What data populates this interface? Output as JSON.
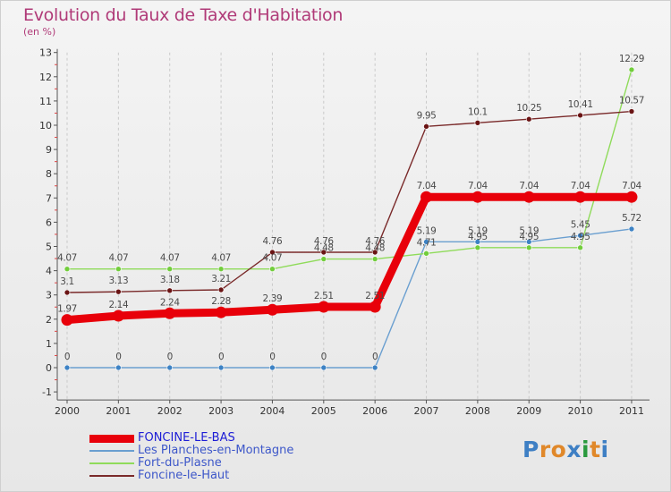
{
  "title": "Evolution du Taux de Taxe d'Habitation",
  "subtitle": "(en %)",
  "logo": {
    "text": "Proxiti",
    "letters": [
      {
        "ch": "P",
        "color": "#3e7fc4"
      },
      {
        "ch": "r",
        "color": "#e0882a"
      },
      {
        "ch": "o",
        "color": "#e0882a"
      },
      {
        "ch": "x",
        "color": "#3e7fc4"
      },
      {
        "ch": "i",
        "color": "#2a9a3e"
      },
      {
        "ch": "t",
        "color": "#e0882a"
      },
      {
        "ch": "i",
        "color": "#3e7fc4"
      }
    ]
  },
  "chart_data": {
    "type": "line",
    "title": "Evolution du Taux de Taxe d'Habitation",
    "subtitle": "(en %)",
    "x": [
      "2000",
      "2001",
      "2002",
      "2003",
      "2004",
      "2005",
      "2006",
      "2007",
      "2008",
      "2009",
      "2010",
      "2011"
    ],
    "ylim": [
      -1,
      13
    ],
    "yticks": [
      -1,
      0,
      1,
      2,
      3,
      4,
      5,
      6,
      7,
      8,
      9,
      10,
      11,
      12,
      13
    ],
    "grid": "vertical dashed",
    "legend_position": "bottom-left",
    "series": [
      {
        "name": "FONCINE-LE-BAS",
        "color": "#e8000a",
        "marker_color": "#e8000a",
        "legend_color": "#1d1dd6",
        "values": [
          1.97,
          2.14,
          2.24,
          2.28,
          2.39,
          2.51,
          2.51,
          7.04,
          7.04,
          7.04,
          7.04,
          7.04
        ],
        "labels": [
          "1.97",
          "2.14",
          "2.24",
          "2.28",
          "2.39",
          "2.51",
          "2.51",
          "7.04",
          "7.04",
          "7.04",
          "7.04",
          "7.04"
        ]
      },
      {
        "name": "Les Planches-en-Montagne",
        "color": "#6a9fd0",
        "marker_color": "#3d82c4",
        "legend_color": "#3d57c9",
        "values": [
          0,
          0,
          0,
          0,
          0,
          0,
          0,
          5.19,
          5.19,
          5.19,
          5.45,
          5.72
        ],
        "labels": [
          "0",
          "0",
          "0",
          "0",
          "0",
          "0",
          "0",
          "5.19",
          "5.19",
          "5.19",
          "5.45",
          "5.72"
        ]
      },
      {
        "name": "Fort-du-Plasne",
        "color": "#8fdb5a",
        "marker_color": "#72cd3c",
        "legend_color": "#3d57c9",
        "values": [
          4.07,
          4.07,
          4.07,
          4.07,
          4.07,
          4.48,
          4.48,
          4.71,
          4.95,
          4.95,
          4.95,
          12.29
        ],
        "labels": [
          "4.07",
          "4.07",
          "4.07",
          "4.07",
          "4.07",
          "4.48",
          "4.48",
          "4.71",
          "4.95",
          "4.95",
          "4.95",
          "12.29"
        ]
      },
      {
        "name": "Foncine-le-Haut",
        "color": "#7a2a2a",
        "marker_color": "#6a1414",
        "legend_color": "#3d57c9",
        "values": [
          3.1,
          3.13,
          3.18,
          3.21,
          4.76,
          4.76,
          4.76,
          9.95,
          10.1,
          10.25,
          10.41,
          10.57
        ],
        "labels": [
          "3.1",
          "3.13",
          "3.18",
          "3.21",
          "4.76",
          "4.76",
          "4.76",
          "9.95",
          "10.1",
          "10.25",
          "10.41",
          "10.57"
        ]
      }
    ]
  }
}
